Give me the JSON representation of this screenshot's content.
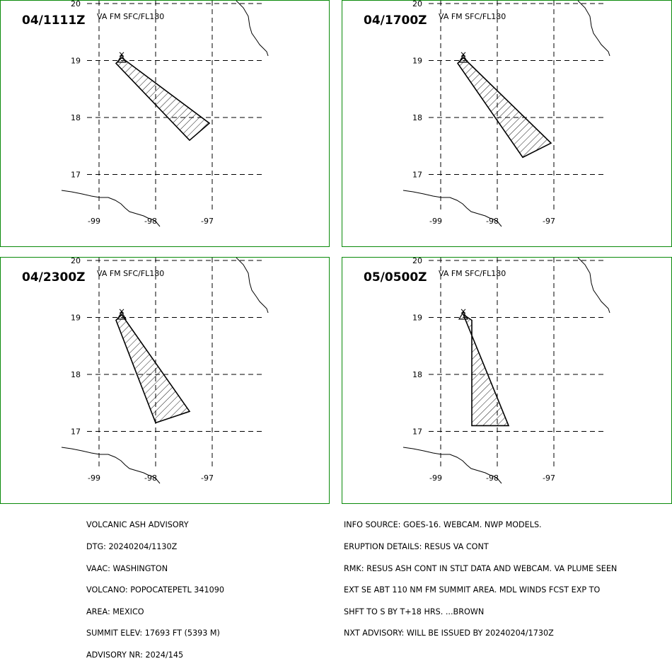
{
  "panels": [
    {
      "time": "04/1111Z",
      "layer": "VA FM SFC/FL180",
      "polygon": [
        [
          -98.6,
          19.05
        ],
        [
          -97.05,
          17.9
        ],
        [
          -97.4,
          17.6
        ],
        [
          -98.7,
          18.95
        ]
      ]
    },
    {
      "time": "04/1700Z",
      "layer": "VA FM SFC/FL180",
      "polygon": [
        [
          -98.6,
          19.05
        ],
        [
          -97.05,
          17.55
        ],
        [
          -97.55,
          17.3
        ],
        [
          -98.7,
          18.95
        ]
      ]
    },
    {
      "time": "04/2300Z",
      "layer": "VA FM SFC/FL180",
      "polygon": [
        [
          -98.6,
          19.05
        ],
        [
          -97.4,
          17.35
        ],
        [
          -98.0,
          17.15
        ],
        [
          -98.7,
          18.95
        ]
      ]
    },
    {
      "time": "05/0500Z",
      "layer": "VA FM SFC/FL180",
      "polygon": [
        [
          -98.6,
          19.05
        ],
        [
          -97.8,
          17.1
        ],
        [
          -98.45,
          17.1
        ],
        [
          -98.45,
          18.95
        ]
      ]
    }
  ],
  "axes": {
    "lat_ticks": [
      "20",
      "19",
      "18",
      "17"
    ],
    "lon_ticks": [
      "-99",
      "-98",
      "-97"
    ]
  },
  "advisory_left": [
    "VOLCANIC ASH ADVISORY",
    "DTG: 20240204/1130Z",
    "VAAC: WASHINGTON",
    "VOLCANO: POPOCATEPETL 341090",
    "AREA: MEXICO",
    "SUMMIT ELEV: 17693 FT (5393 M)",
    "ADVISORY NR: 2024/145"
  ],
  "advisory_right": [
    "INFO SOURCE: GOES-16. WEBCAM. NWP MODELS.",
    "ERUPTION DETAILS: RESUS VA CONT",
    "RMK: RESUS ASH CONT IN STLT DATA AND WEBCAM. VA PLUME SEEN",
    "EXT SE ABT 110 NM FM SUMMIT AREA. MDL WINDS FCST EXP TO",
    "SHFT TO S BY T+18 HRS. ...BROWN",
    "NXT ADVISORY: WILL BE ISSUED BY 20240204/1730Z"
  ],
  "colors": {
    "frame": "#0a8a0a",
    "lines": "#000000"
  }
}
